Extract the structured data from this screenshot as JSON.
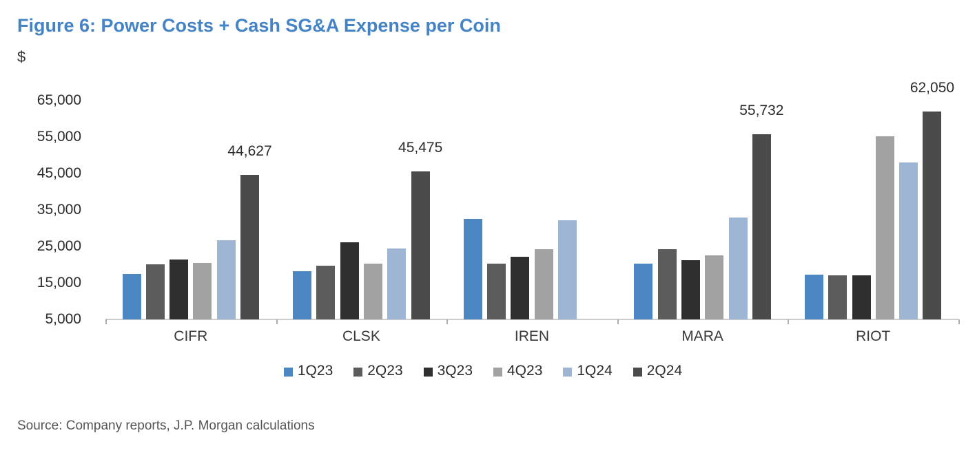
{
  "source_note": "Source: Company reports, J.P. Morgan calculations",
  "theme": {
    "title_color": "#4484C6",
    "axis_line_color": "#cdcdcd",
    "axis_tick_color": "#acacac"
  },
  "chart_data": {
    "type": "bar",
    "title": "Figure 6: Power Costs + Cash SG&A Expense per Coin",
    "ylabel": "$",
    "xlabel": "",
    "categories": [
      "CIFR",
      "CLSK",
      "IREN",
      "MARA",
      "RIOT"
    ],
    "series": [
      {
        "name": "1Q23",
        "color": "#4C87C3",
        "values": [
          17500,
          18200,
          32500,
          20300,
          17200
        ]
      },
      {
        "name": "2Q23",
        "color": "#5C5C5C",
        "values": [
          20100,
          19700,
          20300,
          24300,
          17100
        ]
      },
      {
        "name": "3Q23",
        "color": "#2F2F2F",
        "values": [
          21400,
          26200,
          22100,
          21300,
          17100
        ]
      },
      {
        "name": "4Q23",
        "color": "#A2A2A2",
        "values": [
          20500,
          20300,
          24300,
          22500,
          55200
        ]
      },
      {
        "name": "1Q24",
        "color": "#9EB5D4",
        "values": [
          26700,
          24500,
          32200,
          33000,
          48000
        ]
      },
      {
        "name": "2Q24",
        "color": "#4B4B4B",
        "values": [
          44627,
          45475,
          null,
          55732,
          62050
        ]
      }
    ],
    "data_labels": {
      "series": "2Q24",
      "values": [
        "44,627",
        "45,475",
        null,
        "55,732",
        "62,050"
      ]
    },
    "y_ticks": [
      {
        "value": 5000,
        "label": "5,000"
      },
      {
        "value": 15000,
        "label": "15,000"
      },
      {
        "value": 25000,
        "label": "25,000"
      },
      {
        "value": 35000,
        "label": "35,000"
      },
      {
        "value": 45000,
        "label": "45,000"
      },
      {
        "value": 55000,
        "label": "55,000"
      },
      {
        "value": 65000,
        "label": "65,000"
      }
    ],
    "ylim": [
      5000,
      65000
    ],
    "grid": false,
    "legend_position": "bottom"
  }
}
